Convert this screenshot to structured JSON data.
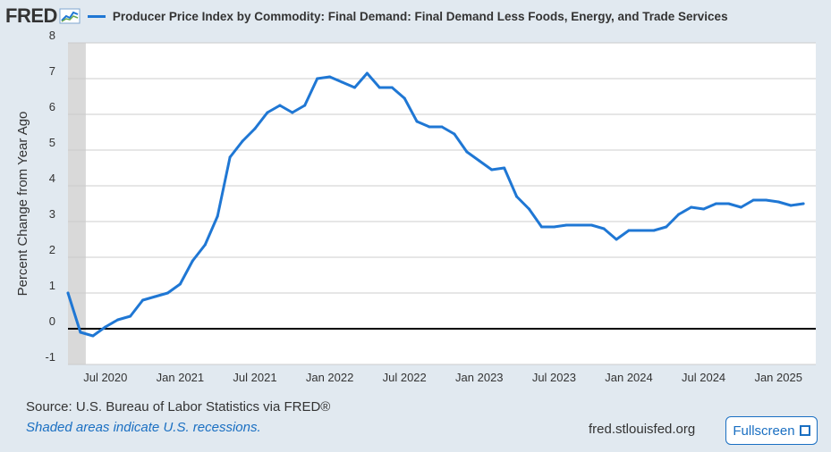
{
  "header": {
    "logo_text": "FRED",
    "logo_icon": "line-graph-icon",
    "legend_label": "Producer Price Index by Commodity: Final Demand: Final Demand Less Foods, Energy, and Trade Services",
    "series_color": "#1f77d4"
  },
  "footer": {
    "source": "Source: U.S. Bureau of Labor Statistics via FRED®",
    "note": "Shaded areas indicate U.S. recessions.",
    "url": "fred.stlouisfed.org",
    "fullscreen_label": "Fullscreen",
    "fullscreen_icon": "expand-corners-icon"
  },
  "chart_data": {
    "type": "line",
    "title": "",
    "series_name": "Producer Price Index by Commodity: Final Demand: Final Demand Less Foods, Energy, and Trade Services",
    "ylabel": "Percent Change from Year Ago",
    "xlabel": "",
    "ylim": [
      -1,
      8
    ],
    "yticks": [
      -1,
      0,
      1,
      2,
      3,
      4,
      5,
      6,
      7,
      8
    ],
    "xlim": [
      "2020-04",
      "2025-04"
    ],
    "xticks": [
      {
        "date": "2020-07",
        "label": "Jul 2020"
      },
      {
        "date": "2021-01",
        "label": "Jan 2021"
      },
      {
        "date": "2021-07",
        "label": "Jul 2021"
      },
      {
        "date": "2022-01",
        "label": "Jan 2022"
      },
      {
        "date": "2022-07",
        "label": "Jul 2022"
      },
      {
        "date": "2023-01",
        "label": "Jan 2023"
      },
      {
        "date": "2023-07",
        "label": "Jul 2023"
      },
      {
        "date": "2024-01",
        "label": "Jan 2024"
      },
      {
        "date": "2024-07",
        "label": "Jul 2024"
      },
      {
        "date": "2025-01",
        "label": "Jan 2025"
      }
    ],
    "recession": {
      "start": "2020-04",
      "end": "2020-05",
      "color": "#d9d9d9"
    },
    "grid": true,
    "colors": {
      "line": "#1f77d4",
      "zero_line": "#000000",
      "grid": "#cccccc"
    },
    "series": [
      {
        "x": [
          "2020-04",
          "2020-05",
          "2020-06",
          "2020-07",
          "2020-08",
          "2020-09",
          "2020-10",
          "2020-11",
          "2020-12",
          "2021-01",
          "2021-02",
          "2021-03",
          "2021-04",
          "2021-05",
          "2021-06",
          "2021-07",
          "2021-08",
          "2021-09",
          "2021-10",
          "2021-11",
          "2021-12",
          "2022-01",
          "2022-02",
          "2022-03",
          "2022-04",
          "2022-05",
          "2022-06",
          "2022-07",
          "2022-08",
          "2022-09",
          "2022-10",
          "2022-11",
          "2022-12",
          "2023-01",
          "2023-02",
          "2023-03",
          "2023-04",
          "2023-05",
          "2023-06",
          "2023-07",
          "2023-08",
          "2023-09",
          "2023-10",
          "2023-11",
          "2023-12",
          "2024-01",
          "2024-02",
          "2024-03",
          "2024-04",
          "2024-05",
          "2024-06",
          "2024-07",
          "2024-08",
          "2024-09",
          "2024-10",
          "2024-11",
          "2024-12",
          "2025-01",
          "2025-02",
          "2025-03"
        ],
        "y": [
          1.0,
          -0.1,
          -0.2,
          0.05,
          0.25,
          0.35,
          0.8,
          0.9,
          1.0,
          1.25,
          1.9,
          2.35,
          3.15,
          4.8,
          5.25,
          5.6,
          6.05,
          6.25,
          6.05,
          6.25,
          7.0,
          7.05,
          6.9,
          6.75,
          7.15,
          6.75,
          6.75,
          6.45,
          5.8,
          5.65,
          5.65,
          5.45,
          4.95,
          4.7,
          4.45,
          4.5,
          3.7,
          3.35,
          2.85,
          2.85,
          2.9,
          2.9,
          2.9,
          2.8,
          2.5,
          2.75,
          2.75,
          2.75,
          2.85,
          3.2,
          3.4,
          3.35,
          3.5,
          3.5,
          3.4,
          3.6,
          3.6,
          3.55,
          3.45,
          3.5
        ]
      }
    ]
  }
}
